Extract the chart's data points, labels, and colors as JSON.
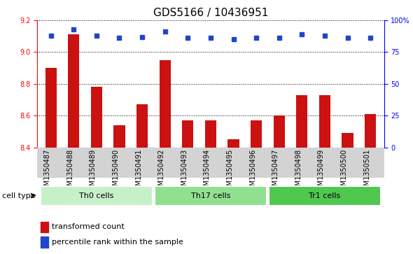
{
  "title": "GDS5166 / 10436951",
  "samples": [
    "GSM1350487",
    "GSM1350488",
    "GSM1350489",
    "GSM1350490",
    "GSM1350491",
    "GSM1350492",
    "GSM1350493",
    "GSM1350494",
    "GSM1350495",
    "GSM1350496",
    "GSM1350497",
    "GSM1350498",
    "GSM1350499",
    "GSM1350500",
    "GSM1350501"
  ],
  "transformed_count": [
    8.9,
    9.11,
    8.78,
    8.54,
    8.67,
    8.95,
    8.57,
    8.57,
    8.45,
    8.57,
    8.6,
    8.73,
    8.73,
    8.49,
    8.61
  ],
  "percentile_rank": [
    88,
    93,
    88,
    86,
    87,
    91,
    86,
    86,
    85,
    86,
    86,
    89,
    88,
    86,
    86
  ],
  "cell_groups": [
    {
      "label": "Th0 cells",
      "start": 0,
      "end": 4,
      "color": "#c8f0c8"
    },
    {
      "label": "Th17 cells",
      "start": 5,
      "end": 9,
      "color": "#90e090"
    },
    {
      "label": "Tr1 cells",
      "start": 10,
      "end": 14,
      "color": "#50c850"
    }
  ],
  "ylim_left": [
    8.4,
    9.2
  ],
  "ylim_right": [
    0,
    100
  ],
  "yticks_left": [
    8.4,
    8.6,
    8.8,
    9.0,
    9.2
  ],
  "yticks_right": [
    0,
    25,
    50,
    75,
    100
  ],
  "bar_color": "#cc1111",
  "dot_color": "#2244cc",
  "bar_width": 0.5,
  "plot_bg_color": "#ffffff",
  "title_fontsize": 11,
  "tick_fontsize": 7,
  "label_fontsize": 8,
  "cell_type_label": "cell type",
  "legend_bar_label": "transformed count",
  "legend_dot_label": "percentile rank within the sample"
}
